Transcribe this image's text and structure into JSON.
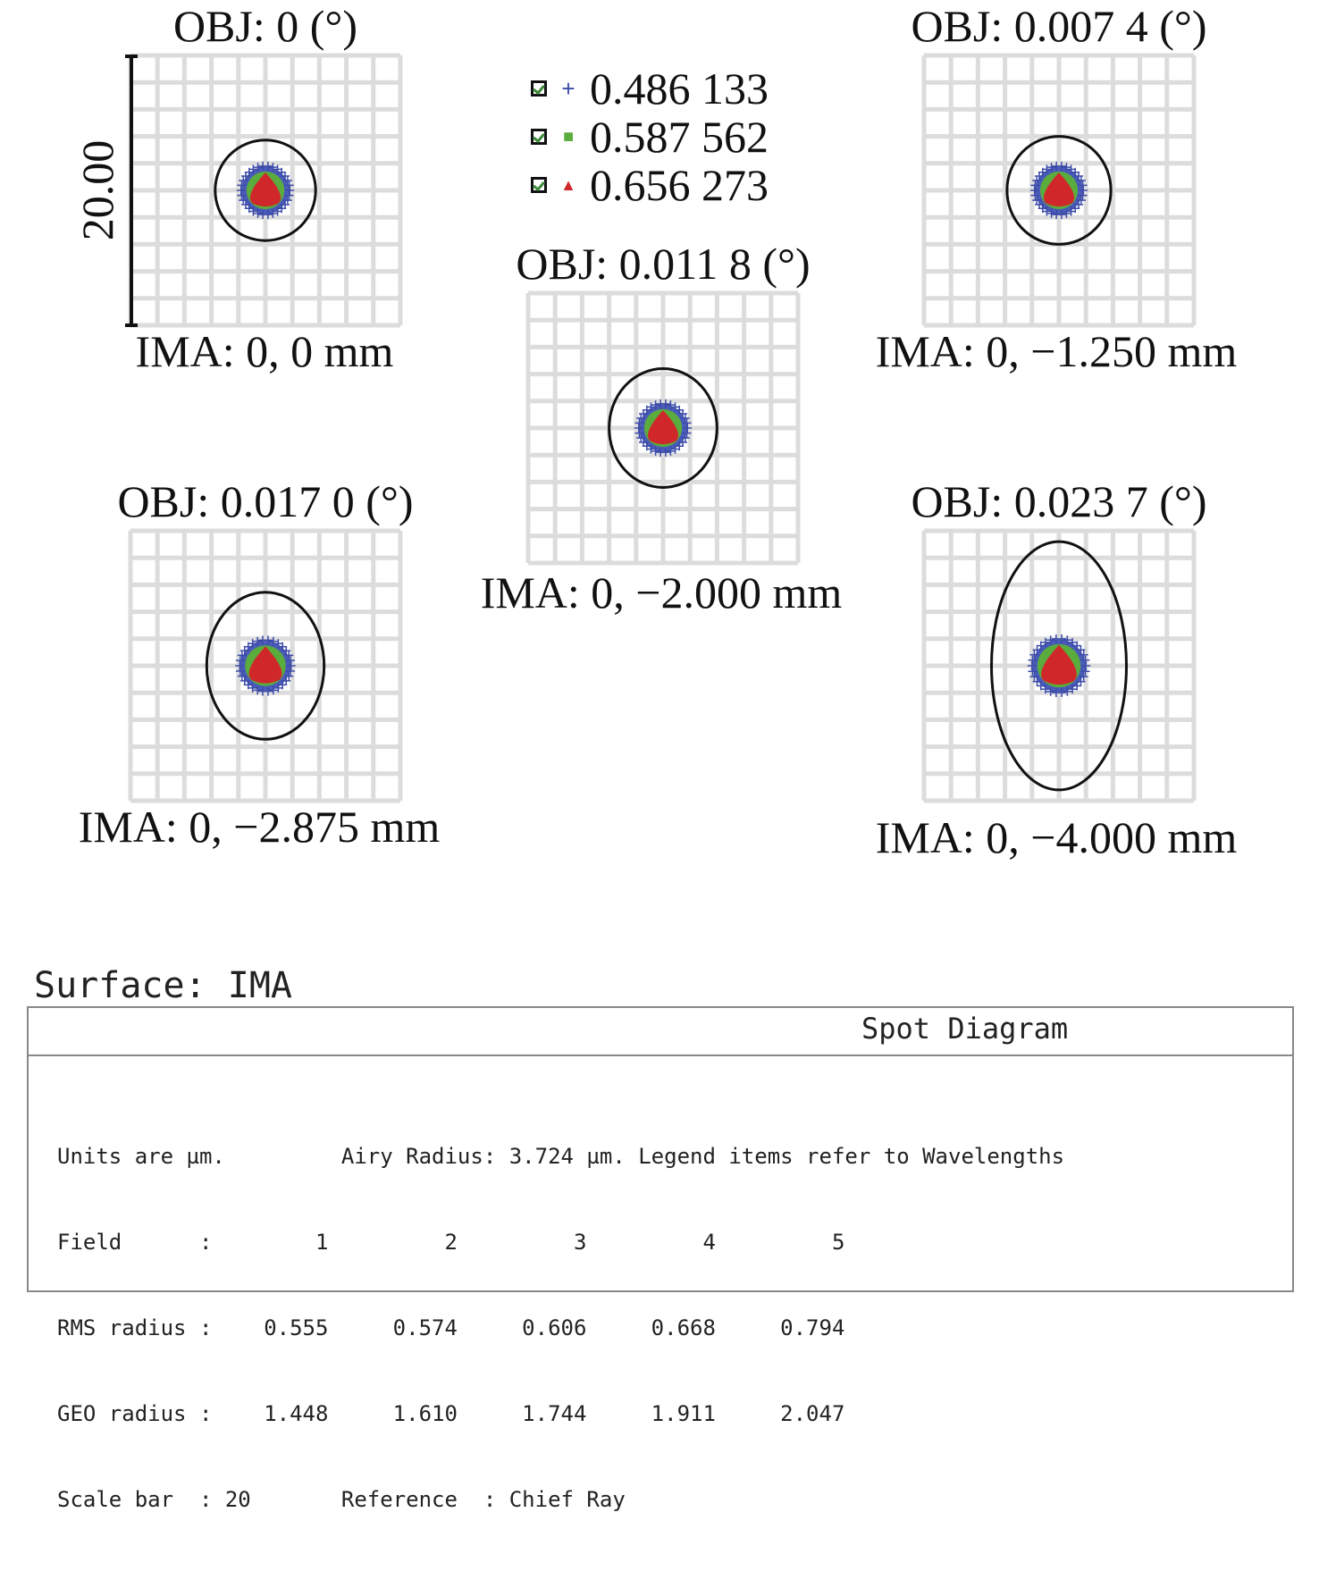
{
  "chart_data": {
    "type": "scatter",
    "title": "Spot Diagram",
    "units": "µm",
    "scale_bar_um": 20,
    "scale_bar_label": "20.00",
    "grid": true,
    "grid_divisions": 10,
    "legend": {
      "placement": "top-center",
      "items": [
        {
          "label": "0.486 133",
          "symbol": "+",
          "color": "#3b4aa8"
        },
        {
          "label": "0.587 562",
          "symbol": "■",
          "color": "#5aac3c"
        },
        {
          "label": "0.656 273",
          "symbol": "▲",
          "color": "#d0282a"
        }
      ]
    },
    "fields": [
      {
        "obj": "OBJ: 0 (°)",
        "ima": "IMA: 0, 0 mm",
        "spot_radius_um": [
          2.0,
          1.4,
          1.2
        ],
        "airy_ellipse_um": [
          3.724,
          3.724
        ]
      },
      {
        "obj": "OBJ: 0.007 4 (°)",
        "ima": "IMA: 0, −1.250 mm",
        "spot_radius_um": [
          2.0,
          1.4,
          1.2
        ],
        "airy_ellipse_um": [
          3.85,
          4.0
        ]
      },
      {
        "obj": "OBJ: 0.011 8 (°)",
        "ima": "IMA: 0, −2.000 mm",
        "spot_radius_um": [
          2.0,
          1.4,
          1.2
        ],
        "airy_ellipse_um": [
          4.0,
          4.4
        ]
      },
      {
        "obj": "OBJ: 0.017 0 (°)",
        "ima": "IMA: 0, −2.875 mm",
        "spot_radius_um": [
          2.1,
          1.5,
          1.3
        ],
        "airy_ellipse_um": [
          4.35,
          5.45
        ]
      },
      {
        "obj": "OBJ: 0.023 7 (°)",
        "ima": "IMA: 0, −4.000 mm",
        "spot_radius_um": [
          2.2,
          1.6,
          1.4
        ],
        "airy_ellipse_um": [
          5.0,
          9.2
        ]
      }
    ]
  },
  "surface_label": "Surface: IMA",
  "table": {
    "title": "Spot Diagram",
    "lines": [
      "Units are µm.         Airy Radius: 3.724 µm. Legend items refer to Wavelengths",
      "Field      :        1         2         3         4         5",
      "RMS radius :    0.555     0.574     0.606     0.668     0.794",
      "GEO radius :    1.448     1.610     1.744     1.911     2.047",
      "Scale bar  : 20       Reference  : Chief Ray"
    ]
  }
}
